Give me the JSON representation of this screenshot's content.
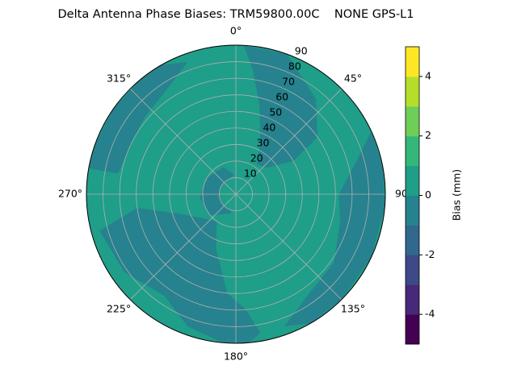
{
  "chart_data": {
    "type": "polar-contour",
    "title": "Delta Antenna Phase Biases: TRM59800.00C    NONE GPS-L1",
    "colorbar_label": "Bias (mm)",
    "levels": [
      -5,
      -4,
      -3,
      -2,
      -1,
      0,
      1,
      2,
      3,
      4,
      5
    ],
    "colors": [
      "#440154",
      "#482878",
      "#3e4989",
      "#31688e",
      "#26828e",
      "#1f9e89",
      "#35b779",
      "#6ece58",
      "#b5de2b",
      "#fde725"
    ],
    "colorbar_ticks": [
      -4,
      -2,
      0,
      2,
      4
    ],
    "background_value": 0,
    "rlim": [
      0,
      90
    ],
    "rticks": [
      10,
      20,
      30,
      40,
      50,
      60,
      70,
      80,
      90
    ],
    "thetaticks": [
      {
        "value": 0,
        "label": "0°"
      },
      {
        "value": 45,
        "label": "45°"
      },
      {
        "value": 90,
        "label": "90"
      },
      {
        "value": 135,
        "label": "135°"
      },
      {
        "value": 180,
        "label": "180°"
      },
      {
        "value": 225,
        "label": "225°"
      },
      {
        "value": 270,
        "label": "270°"
      },
      {
        "value": 315,
        "label": "315°"
      }
    ],
    "grid": true,
    "regions": [
      {
        "value": -1,
        "azimuth": [
          3,
          20,
          40,
          55,
          60,
          50,
          35,
          25,
          15,
          8,
          3
        ],
        "zenith": [
          90,
          90,
          75,
          60,
          40,
          25,
          22,
          35,
          55,
          75,
          90
        ]
      },
      {
        "value": -1,
        "azimuth": [
          280,
          290,
          305,
          320,
          330,
          340,
          325,
          310,
          295,
          280
        ],
        "zenith": [
          90,
          90,
          90,
          90,
          90,
          85,
          75,
          72,
          70,
          72
        ]
      },
      {
        "value": -1,
        "azimuth": [
          175,
          185,
          200,
          215,
          235,
          255,
          262,
          250,
          235,
          215,
          200,
          185,
          175,
          170
        ],
        "zenith": [
          90,
          90,
          85,
          75,
          82,
          85,
          60,
          35,
          25,
          20,
          35,
          60,
          70,
          85
        ]
      },
      {
        "value": -1,
        "azimuth": [
          65,
          80,
          95,
          115,
          135,
          150,
          160,
          145,
          125,
          105,
          90,
          75
        ],
        "zenith": [
          90,
          90,
          90,
          90,
          90,
          90,
          85,
          75,
          72,
          65,
          62,
          75
        ]
      },
      {
        "value": -1,
        "azimuth": [
          195,
          230,
          265,
          300,
          335,
          355,
          340,
          300,
          265,
          230,
          195
        ],
        "zenith": [
          12,
          20,
          22,
          20,
          18,
          12,
          10,
          10,
          10,
          10,
          10
        ]
      }
    ]
  }
}
